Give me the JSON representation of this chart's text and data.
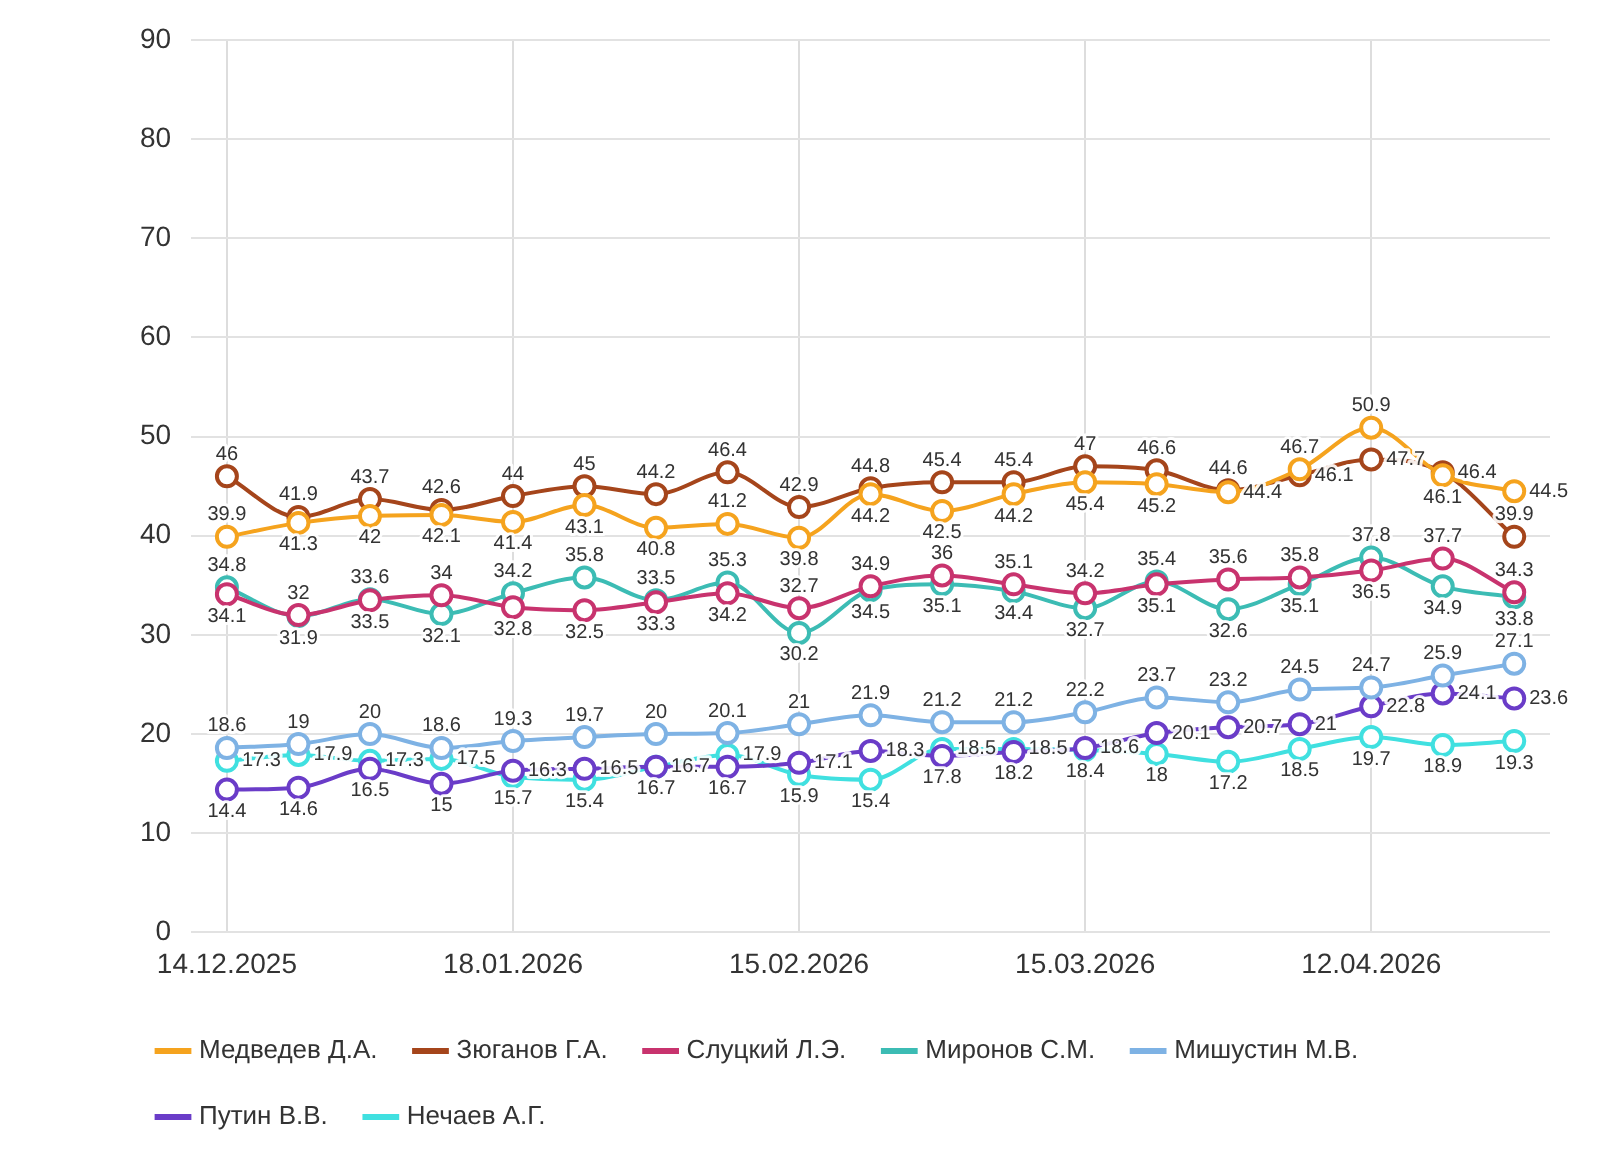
{
  "chart_data": {
    "type": "line",
    "categories": [
      "14.12.2025",
      null,
      null,
      null,
      "18.01.2026",
      null,
      null,
      null,
      "15.02.2026",
      null,
      null,
      null,
      "15.03.2026",
      null,
      null,
      null,
      "12.04.2026",
      null,
      null
    ],
    "series": [
      {
        "name": "Медведев Д.А.",
        "color": "#f5a31e",
        "values": [
          39.9,
          41.3,
          42,
          42.1,
          41.4,
          43.1,
          40.8,
          41.2,
          39.8,
          44.2,
          42.5,
          44.2,
          45.4,
          45.2,
          44.4,
          46.7,
          50.9,
          46.1,
          44.5
        ]
      },
      {
        "name": "Зюганов Г.А.",
        "color": "#a5451b",
        "values": [
          46,
          41.9,
          43.7,
          42.6,
          44,
          45,
          44.2,
          46.4,
          42.9,
          44.8,
          45.4,
          45.4,
          47,
          46.6,
          44.6,
          46.1,
          47.7,
          46.4,
          39.9
        ]
      },
      {
        "name": "Слуцкий Л.Э.",
        "color": "#c8336e",
        "values": [
          34.1,
          32,
          33.5,
          34,
          32.8,
          32.5,
          33.3,
          34.2,
          32.7,
          34.9,
          36,
          35.1,
          34.2,
          35.1,
          35.6,
          35.8,
          36.5,
          37.7,
          34.3
        ]
      },
      {
        "name": "Миронов С.М.",
        "color": "#3cbcb4",
        "values": [
          34.8,
          31.9,
          33.6,
          32.1,
          34.2,
          35.8,
          33.5,
          35.3,
          30.2,
          34.5,
          35.1,
          34.4,
          32.7,
          35.4,
          32.6,
          35.1,
          37.8,
          34.9,
          33.8
        ]
      },
      {
        "name": "Мишустин М.В.",
        "color": "#7eb2e4",
        "values": [
          18.6,
          19,
          20,
          18.6,
          19.3,
          19.7,
          20,
          20.1,
          21,
          21.9,
          21.2,
          21.2,
          22.2,
          23.7,
          23.2,
          24.5,
          24.7,
          25.9,
          27.1
        ]
      },
      {
        "name": "Путин В.В.",
        "color": "#6a3cc8",
        "values": [
          14.4,
          14.6,
          16.5,
          15,
          16.3,
          16.5,
          16.7,
          16.7,
          17.1,
          18.3,
          17.8,
          18.2,
          18.6,
          20.1,
          20.7,
          21,
          22.8,
          24.1,
          23.6
        ]
      },
      {
        "name": "Нечаев А.Г.",
        "color": "#40e0e0",
        "values": [
          17.3,
          17.9,
          17.3,
          17.5,
          15.7,
          15.4,
          16.7,
          17.9,
          15.9,
          15.4,
          18.5,
          18.5,
          18.4,
          18,
          17.2,
          18.5,
          19.7,
          18.9,
          19.3
        ]
      }
    ],
    "ylim": [
      0,
      90
    ],
    "yticks": [
      0,
      10,
      20,
      30,
      40,
      50,
      60,
      70,
      80,
      90
    ],
    "grid": true,
    "legend": "bottom",
    "marker": "circle",
    "line_style": "solid",
    "data_labels": true
  }
}
